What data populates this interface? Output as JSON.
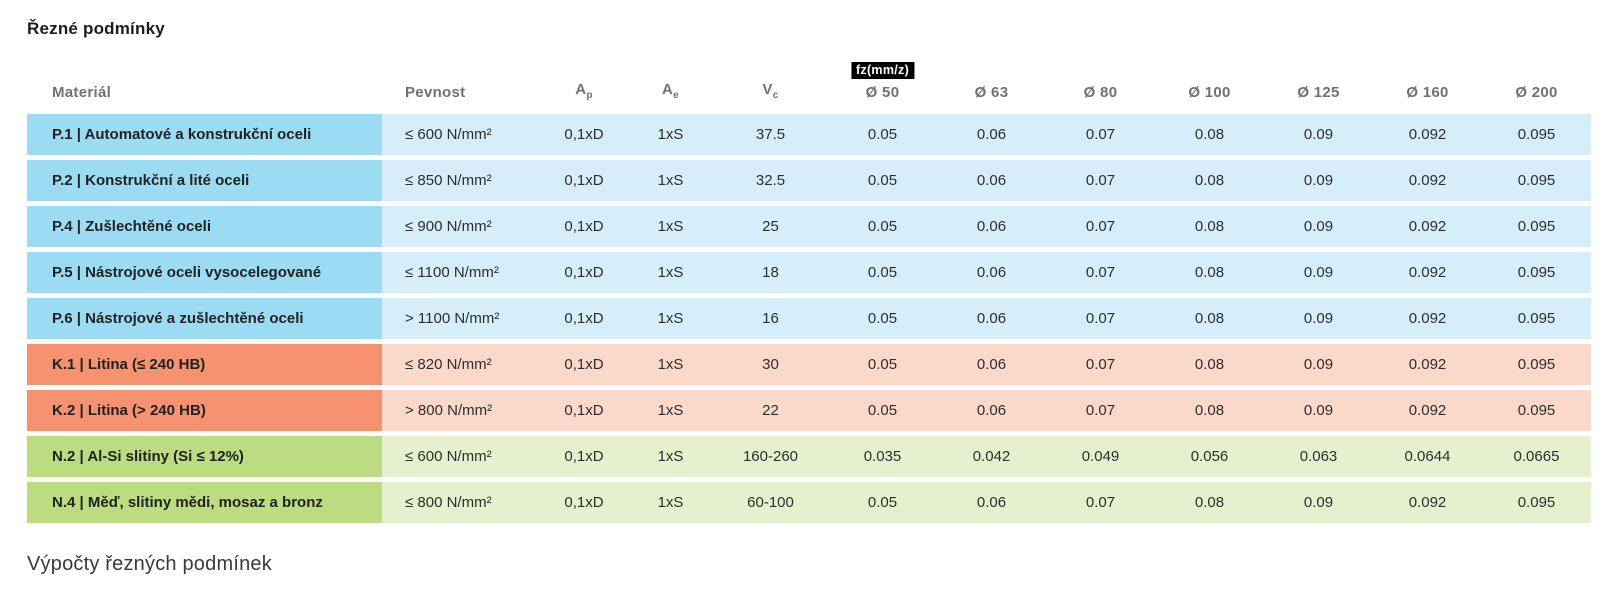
{
  "page": {
    "title": "Řezné podmínky",
    "section_heading": "Výpočty řezných podmínek"
  },
  "table": {
    "fz_badge": "fz(mm/z)",
    "headers": {
      "material": "Materiál",
      "pevnost": "Pevnost",
      "ap_main": "A",
      "ap_sub": "p",
      "ae_main": "A",
      "ae_sub": "e",
      "vc_main": "V",
      "vc_sub": "c",
      "diameters": [
        "Ø 50",
        "Ø 63",
        "Ø 80",
        "Ø 100",
        "Ø 125",
        "Ø 160",
        "Ø 200"
      ]
    },
    "colors": {
      "blue_head": "#9bdcf3",
      "blue_cell": "#d6eefa",
      "orange_head": "#f6926f",
      "orange_cell": "#fad8ca",
      "green_head": "#bcdc82",
      "green_cell": "#e6f0cf"
    },
    "rows": [
      {
        "color": "blue",
        "material": "P.1 | Automatové a konstrukční oceli",
        "pevnost": "≤ 600 N/mm²",
        "ap": "0,1xD",
        "ae": "1xS",
        "vc": "37.5",
        "fz": [
          "0.05",
          "0.06",
          "0.07",
          "0.08",
          "0.09",
          "0.092",
          "0.095"
        ]
      },
      {
        "color": "blue",
        "material": "P.2 | Konstrukční a lité oceli",
        "pevnost": "≤ 850 N/mm²",
        "ap": "0,1xD",
        "ae": "1xS",
        "vc": "32.5",
        "fz": [
          "0.05",
          "0.06",
          "0.07",
          "0.08",
          "0.09",
          "0.092",
          "0.095"
        ]
      },
      {
        "color": "blue",
        "material": "P.4 | Zušlechtěné oceli",
        "pevnost": "≤ 900 N/mm²",
        "ap": "0,1xD",
        "ae": "1xS",
        "vc": "25",
        "fz": [
          "0.05",
          "0.06",
          "0.07",
          "0.08",
          "0.09",
          "0.092",
          "0.095"
        ]
      },
      {
        "color": "blue",
        "material": "P.5 | Nástrojové oceli vysocelegované",
        "pevnost": "≤ 1100 N/mm²",
        "ap": "0,1xD",
        "ae": "1xS",
        "vc": "18",
        "fz": [
          "0.05",
          "0.06",
          "0.07",
          "0.08",
          "0.09",
          "0.092",
          "0.095"
        ]
      },
      {
        "color": "blue",
        "material": "P.6 | Nástrojové a zušlechtěné oceli",
        "pevnost": "> 1100 N/mm²",
        "ap": "0,1xD",
        "ae": "1xS",
        "vc": "16",
        "fz": [
          "0.05",
          "0.06",
          "0.07",
          "0.08",
          "0.09",
          "0.092",
          "0.095"
        ]
      },
      {
        "color": "orange",
        "material": "K.1 | Litina (≤ 240 HB)",
        "pevnost": "≤ 820 N/mm²",
        "ap": "0,1xD",
        "ae": "1xS",
        "vc": "30",
        "fz": [
          "0.05",
          "0.06",
          "0.07",
          "0.08",
          "0.09",
          "0.092",
          "0.095"
        ]
      },
      {
        "color": "orange",
        "material": "K.2 | Litina (> 240 HB)",
        "pevnost": "> 800 N/mm²",
        "ap": "0,1xD",
        "ae": "1xS",
        "vc": "22",
        "fz": [
          "0.05",
          "0.06",
          "0.07",
          "0.08",
          "0.09",
          "0.092",
          "0.095"
        ]
      },
      {
        "color": "green",
        "material": "N.2 | Al-Si slitiny (Si ≤ 12%)",
        "pevnost": "≤ 600 N/mm²",
        "ap": "0,1xD",
        "ae": "1xS",
        "vc": "160-260",
        "fz": [
          "0.035",
          "0.042",
          "0.049",
          "0.056",
          "0.063",
          "0.0644",
          "0.0665"
        ]
      },
      {
        "color": "green",
        "material": "N.4 | Měď, slitiny mědi, mosaz a bronz",
        "pevnost": "≤ 800 N/mm²",
        "ap": "0,1xD",
        "ae": "1xS",
        "vc": "60-100",
        "fz": [
          "0.05",
          "0.06",
          "0.07",
          "0.08",
          "0.09",
          "0.092",
          "0.095"
        ]
      }
    ]
  }
}
